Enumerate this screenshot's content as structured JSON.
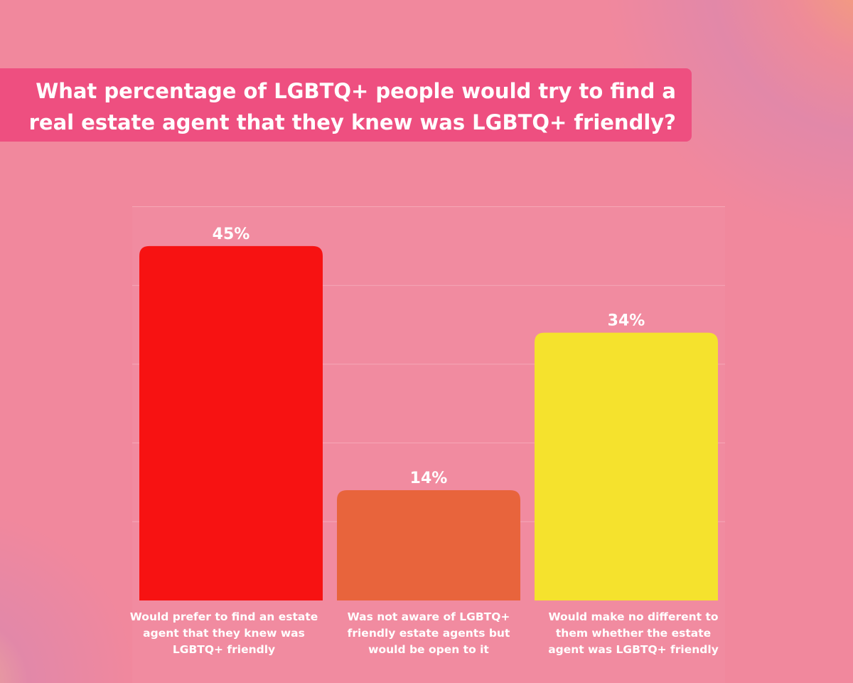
{
  "title": "What percentage of LGBTQ+ people would try to find a\nreal estate agent that they knew was LGBTQ+ friendly?",
  "chart_data": {
    "type": "bar",
    "title": "What percentage of LGBTQ+ people would try to find a real estate agent that they knew was LGBTQ+ friendly?",
    "categories": [
      "Would prefer to find an estate agent that they knew was LGBTQ+ friendly",
      "Was not aware of LGBTQ+ friendly estate agents but would be open to it",
      "Would make no different to them whether the estate agent was LGBTQ+ friendly"
    ],
    "values": [
      45,
      14,
      34
    ],
    "value_labels": [
      "45%",
      "14%",
      "34%"
    ],
    "colors": [
      "#f71212",
      "#e8643c",
      "#f5e22d"
    ],
    "ylim": [
      0,
      50
    ],
    "grid": true,
    "legend": "none",
    "xlabel": "",
    "ylabel": ""
  },
  "theme": {
    "background": "#f1889d",
    "banner": "#ee4f80",
    "text": "#ffffff",
    "gridline": "#f6a7b7"
  }
}
